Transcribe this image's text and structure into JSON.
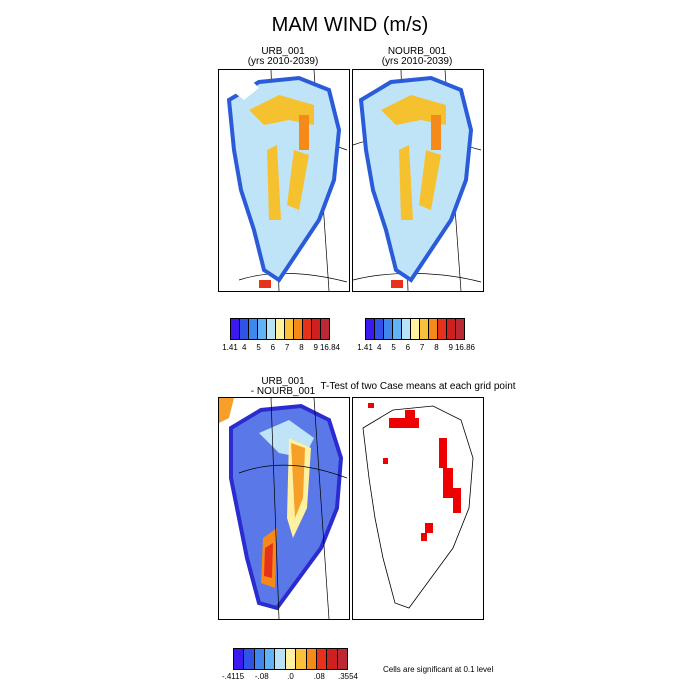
{
  "figure": {
    "title": "MAM WIND (m/s)"
  },
  "panels": {
    "urb": {
      "title1": "URB_001",
      "title2": "(yrs 2010-2039)"
    },
    "nourb": {
      "title1": "NOURB_001",
      "title2": "(yrs 2010-2039)"
    },
    "diff": {
      "title1": "URB_001",
      "title2": "- NOURB_001"
    },
    "ttest": {
      "title": "T-Test of two Case means at each grid point"
    }
  },
  "colorbars": {
    "urb": {
      "colors": [
        "#3a1af0",
        "#3152e8",
        "#3f86ef",
        "#5fb3f6",
        "#b8e2f8",
        "#fff1a0",
        "#f9c23a",
        "#f5891a",
        "#e8311a",
        "#d01f1f",
        "#bb2a34"
      ],
      "labels": [
        "1.41",
        "4",
        "5",
        "6",
        "7",
        "8",
        "9",
        "16.84"
      ]
    },
    "nourb": {
      "colors": [
        "#3a1af0",
        "#3152e8",
        "#3f86ef",
        "#5fb3f6",
        "#b8e2f8",
        "#fff1a0",
        "#f9c23a",
        "#f5891a",
        "#e8311a",
        "#d01f1f",
        "#bb2a34"
      ],
      "labels": [
        "1.41",
        "4",
        "5",
        "6",
        "7",
        "8",
        "9",
        "16.86"
      ]
    },
    "diff": {
      "colors": [
        "#3a1af0",
        "#3152e8",
        "#3f86ef",
        "#5fb3f6",
        "#b8e2f8",
        "#fff1a0",
        "#f9c23a",
        "#f5891a",
        "#e8311a",
        "#d01f1f",
        "#bb2a34"
      ],
      "labels": [
        "-.4115",
        "-.08",
        ".0",
        ".08",
        ".3554"
      ]
    }
  },
  "note": "Cells are significant at 0.1 level",
  "colors": {
    "land_outline": "#000000",
    "significance": "#ee0000"
  }
}
